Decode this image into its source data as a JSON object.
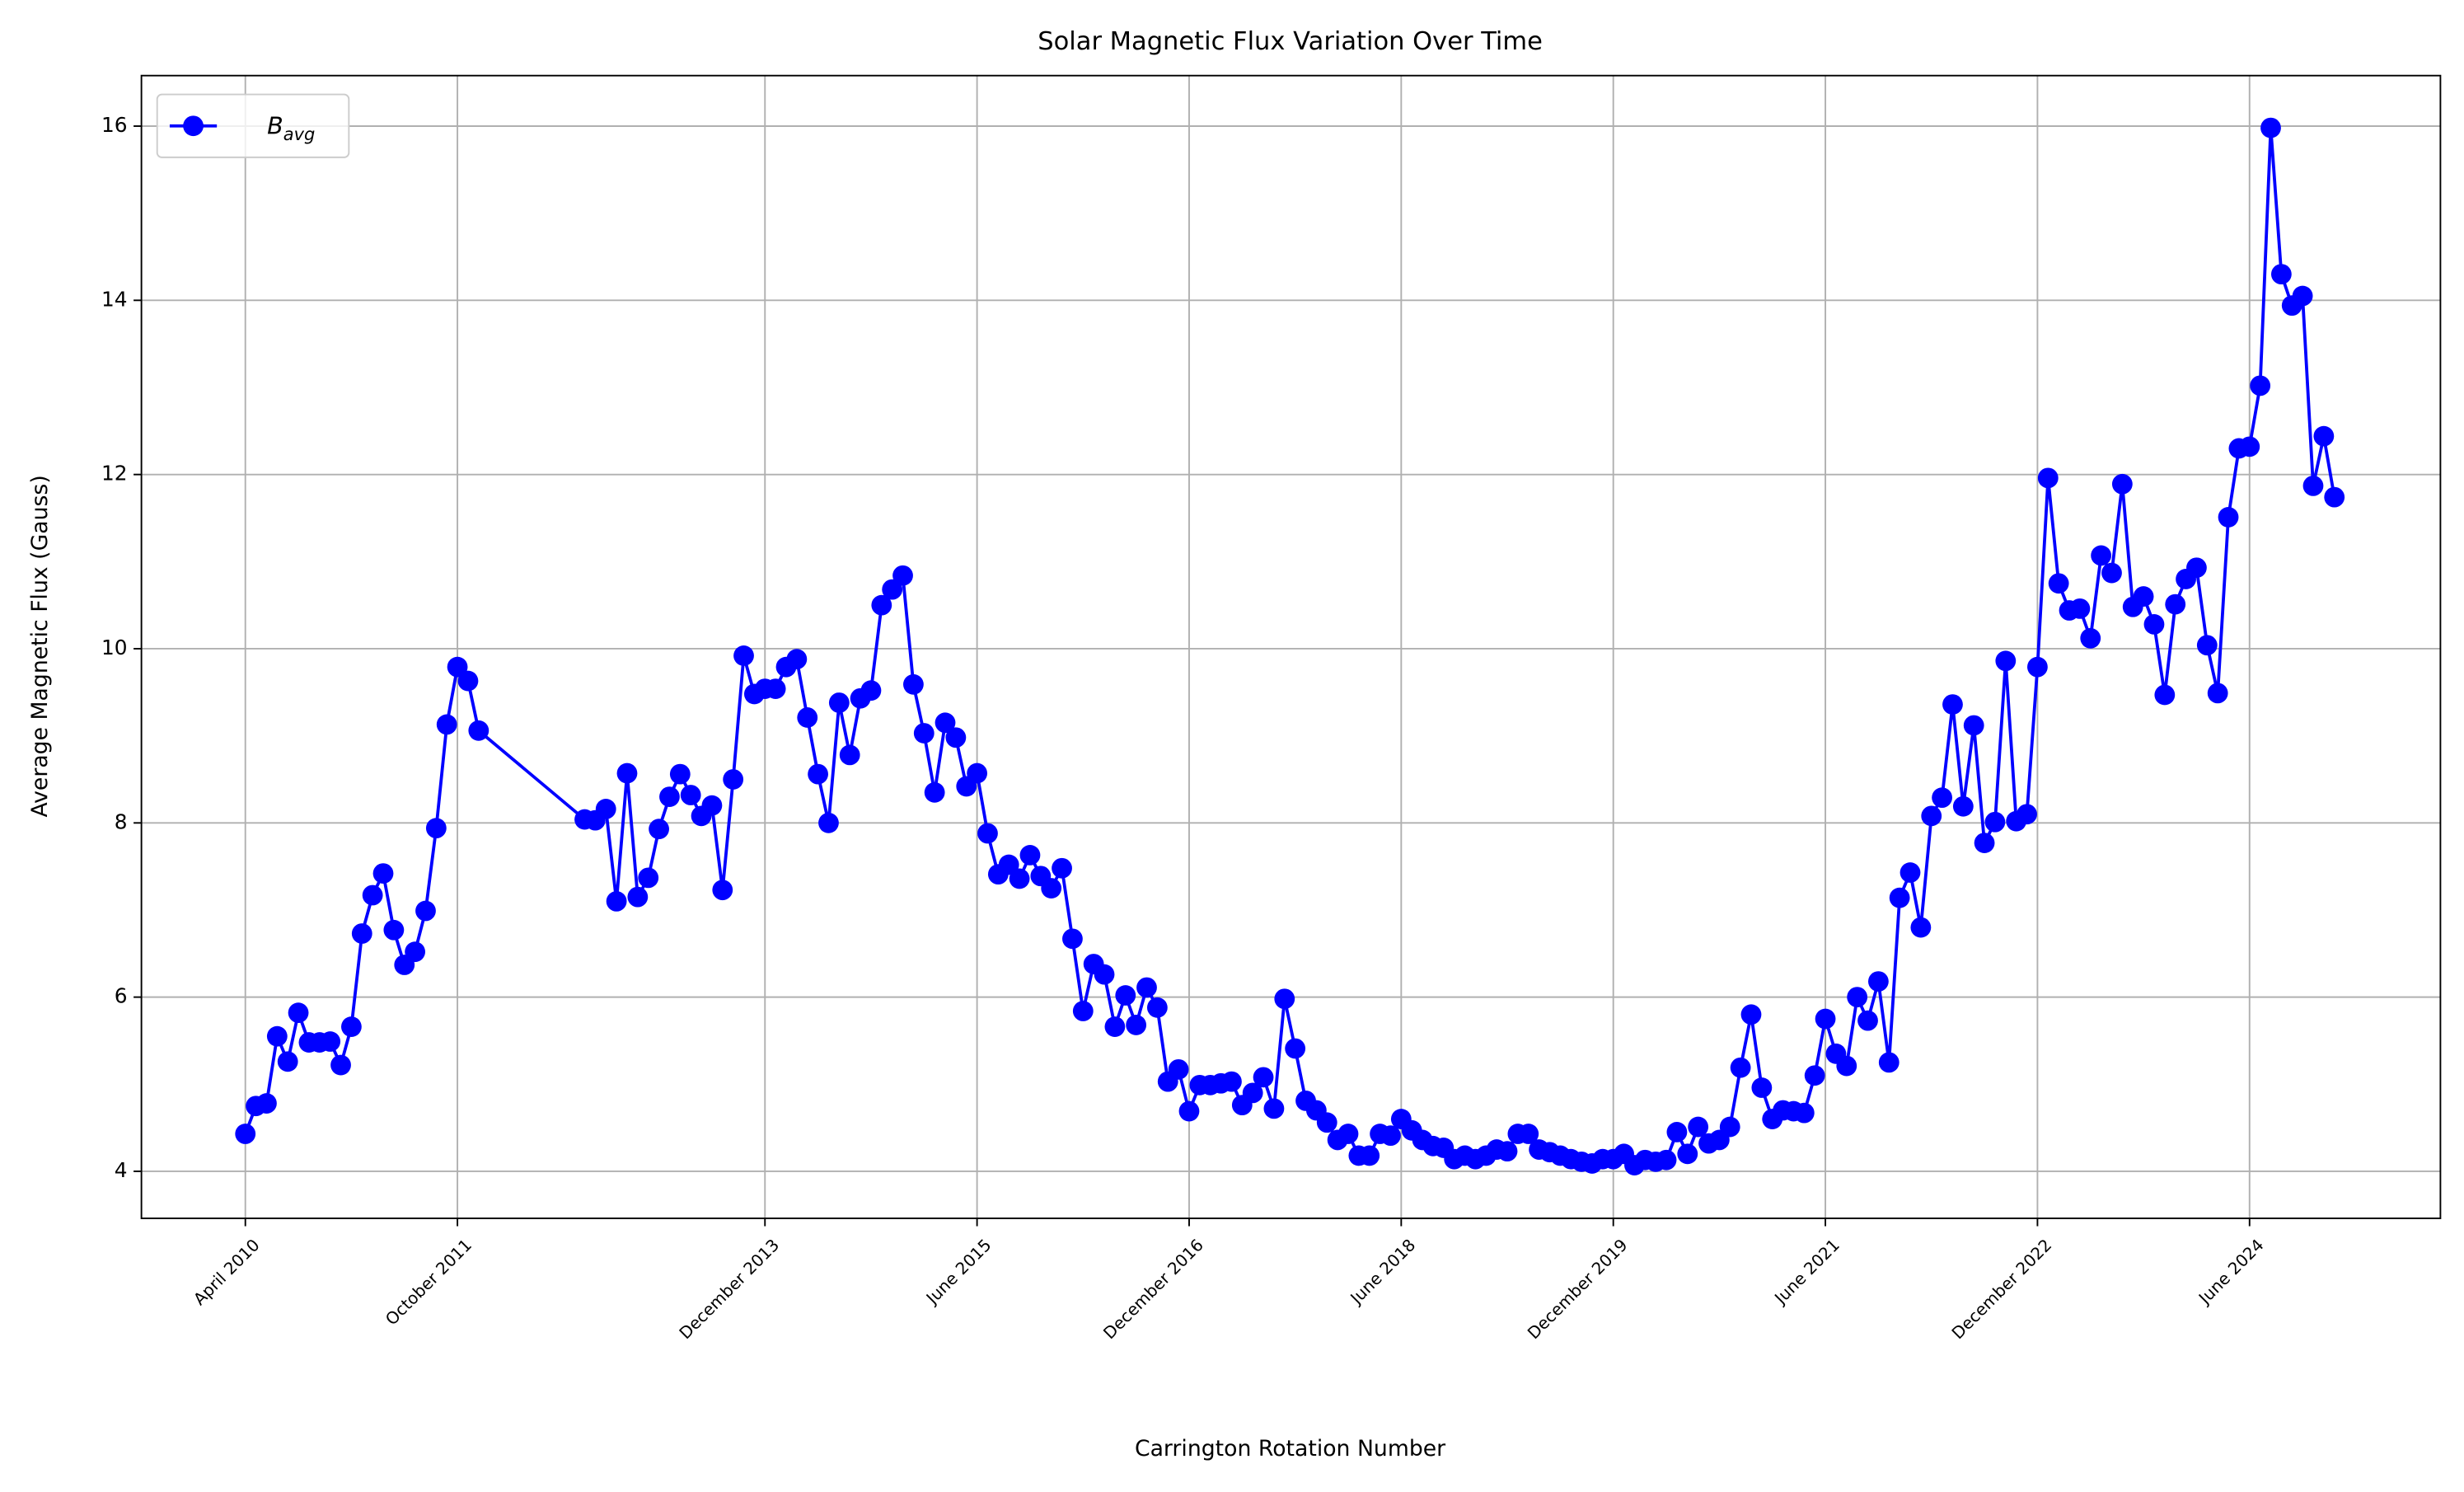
{
  "chart_data": {
    "type": "line",
    "title": "Solar Magnetic Flux Variation Over Time",
    "xlabel": "Carrington Rotation Number",
    "ylabel": "Average Magnetic Flux (Gauss)",
    "x": [
      2096,
      2097,
      2098,
      2099,
      2100,
      2101,
      2102,
      2103,
      2104,
      2105,
      2106,
      2107,
      2108,
      2109,
      2110,
      2111,
      2112,
      2113,
      2114,
      2115,
      2116,
      2117,
      2118,
      2128,
      2129,
      2130,
      2131,
      2132,
      2133,
      2134,
      2135,
      2136,
      2137,
      2138,
      2139,
      2140,
      2141,
      2142,
      2143,
      2144,
      2145,
      2146,
      2147,
      2148,
      2149,
      2150,
      2151,
      2152,
      2153,
      2154,
      2155,
      2156,
      2157,
      2158,
      2159,
      2160,
      2161,
      2162,
      2163,
      2164,
      2165,
      2166,
      2167,
      2168,
      2169,
      2170,
      2171,
      2172,
      2173,
      2174,
      2175,
      2176,
      2177,
      2178,
      2179,
      2180,
      2181,
      2182,
      2183,
      2184,
      2185,
      2186,
      2187,
      2188,
      2189,
      2190,
      2191,
      2192,
      2193,
      2194,
      2195,
      2196,
      2197,
      2198,
      2199,
      2200,
      2201,
      2202,
      2203,
      2204,
      2205,
      2206,
      2207,
      2208,
      2209,
      2210,
      2211,
      2212,
      2213,
      2214,
      2215,
      2216,
      2217,
      2218,
      2219,
      2220,
      2221,
      2222,
      2223,
      2224,
      2225,
      2226,
      2227,
      2228,
      2229,
      2230,
      2231,
      2232,
      2233,
      2234,
      2235,
      2236,
      2237,
      2238,
      2239,
      2240,
      2241,
      2242,
      2243,
      2244,
      2245,
      2246,
      2247,
      2248,
      2249,
      2250,
      2251,
      2252,
      2253,
      2254,
      2255,
      2256,
      2257,
      2258,
      2259,
      2260,
      2261,
      2262,
      2263,
      2264,
      2265,
      2266,
      2267,
      2268,
      2269,
      2270,
      2271,
      2272,
      2273,
      2274,
      2275,
      2276,
      2277,
      2278,
      2279,
      2280,
      2281,
      2282,
      2283,
      2284,
      2285,
      2286,
      2287,
      2288,
      2289,
      2290,
      2291,
      2292,
      2293
    ],
    "series": [
      {
        "name": "Bavg",
        "color": "#0000ff",
        "values": [
          4.43,
          4.75,
          4.78,
          5.55,
          5.26,
          5.82,
          5.48,
          5.48,
          5.49,
          5.22,
          5.66,
          6.73,
          7.17,
          7.42,
          6.77,
          6.37,
          6.52,
          6.99,
          7.94,
          9.13,
          9.79,
          9.63,
          9.06,
          8.04,
          8.03,
          8.16,
          7.1,
          8.57,
          7.15,
          7.37,
          7.93,
          8.3,
          8.56,
          8.32,
          8.08,
          8.2,
          7.23,
          8.5,
          9.92,
          9.48,
          9.54,
          9.54,
          9.79,
          9.88,
          9.21,
          8.56,
          8.0,
          9.38,
          8.78,
          9.43,
          9.52,
          10.5,
          10.68,
          10.84,
          9.59,
          9.03,
          8.35,
          9.15,
          8.98,
          8.42,
          8.57,
          7.88,
          7.41,
          7.52,
          7.36,
          7.63,
          7.39,
          7.25,
          7.48,
          6.67,
          5.84,
          6.38,
          6.26,
          5.66,
          6.02,
          5.68,
          6.11,
          5.88,
          5.03,
          5.17,
          4.69,
          4.99,
          4.99,
          5.01,
          5.03,
          4.76,
          4.9,
          5.08,
          4.72,
          5.98,
          5.41,
          4.81,
          4.7,
          4.56,
          4.36,
          4.43,
          4.18,
          4.18,
          4.43,
          4.41,
          4.6,
          4.47,
          4.36,
          4.29,
          4.27,
          4.14,
          4.18,
          4.14,
          4.18,
          4.25,
          4.23,
          4.43,
          4.43,
          4.25,
          4.22,
          4.18,
          4.14,
          4.11,
          4.09,
          4.14,
          4.14,
          4.2,
          4.07,
          4.13,
          4.11,
          4.13,
          4.45,
          4.2,
          4.51,
          4.32,
          4.36,
          4.51,
          5.19,
          5.8,
          4.96,
          4.6,
          4.7,
          4.69,
          4.67,
          5.1,
          5.75,
          5.35,
          5.21,
          6.0,
          5.73,
          6.18,
          5.25,
          7.14,
          7.43,
          6.8,
          8.08,
          8.29,
          9.36,
          8.19,
          9.12,
          7.77,
          8.01,
          9.86,
          8.02,
          8.1,
          9.79,
          11.96,
          10.75,
          10.44,
          10.46,
          10.12,
          11.07,
          10.87,
          11.89,
          10.48,
          10.6,
          10.28,
          9.47,
          10.51,
          10.8,
          10.93,
          10.04,
          9.49,
          11.51,
          12.3,
          12.32,
          13.02,
          15.98,
          14.3,
          13.94,
          14.05,
          11.87,
          12.44,
          11.74
        ]
      }
    ],
    "xlim": [
      2086.2,
      2303
    ],
    "ylim": [
      3.46,
      16.58
    ],
    "xticks": [
      {
        "value": 2096,
        "label": "April 2010"
      },
      {
        "value": 2116,
        "label": "October 2011"
      },
      {
        "value": 2145,
        "label": "December 2013"
      },
      {
        "value": 2165,
        "label": "June 2015"
      },
      {
        "value": 2185,
        "label": "December 2016"
      },
      {
        "value": 2205,
        "label": "June 2018"
      },
      {
        "value": 2225,
        "label": "December 2019"
      },
      {
        "value": 2245,
        "label": "June 2021"
      },
      {
        "value": 2265,
        "label": "December 2022"
      },
      {
        "value": 2285,
        "label": "June 2024"
      }
    ],
    "yticks": [
      4,
      6,
      8,
      10,
      12,
      14,
      16
    ],
    "grid": true,
    "legend": "upper left"
  }
}
